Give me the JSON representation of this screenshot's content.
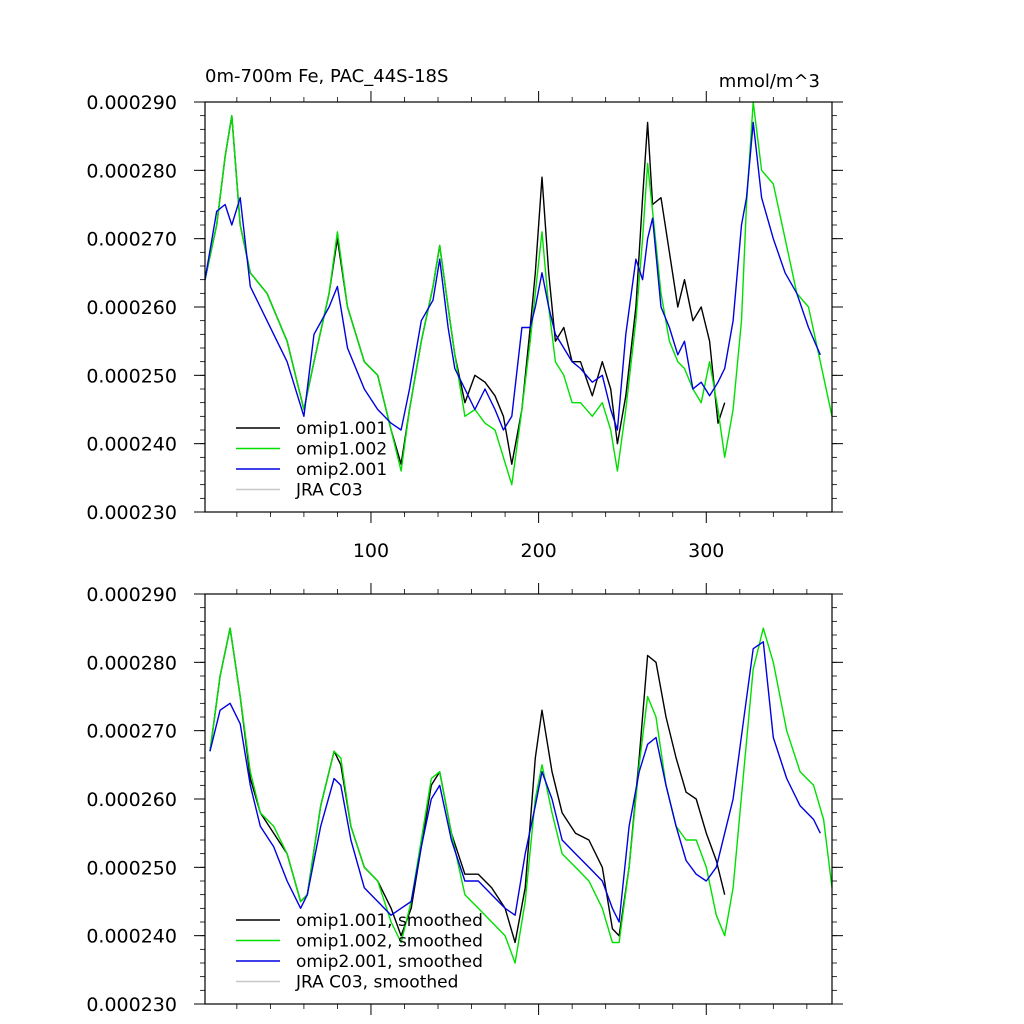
{
  "chart_data": [
    {
      "type": "line",
      "title": "0m-700m Fe, PAC_44S-18S",
      "units": "mmol/m^3",
      "xlim": [
        1,
        375
      ],
      "ylim": [
        0.00023,
        0.00029
      ],
      "x_ticks": [
        100,
        200,
        300
      ],
      "x_tick_labels": [
        "100",
        "200",
        "300"
      ],
      "y_ticks": [
        0.00023,
        0.00024,
        0.00025,
        0.00026,
        0.00027,
        0.00028,
        0.00029
      ],
      "y_tick_labels": [
        "0.000230",
        "0.000240",
        "0.000250",
        "0.000260",
        "0.000270",
        "0.000280",
        "0.000290"
      ],
      "legend": [
        "omip1.001",
        "omip1.002",
        "omip2.001",
        "JRA C03"
      ],
      "series": [
        {
          "name": "omip1.001",
          "color": "#000000",
          "x": [
            1,
            8,
            13,
            17,
            22,
            28,
            38,
            50,
            60,
            66,
            75,
            80,
            86,
            96,
            104,
            112,
            118,
            123,
            130,
            137,
            141,
            146,
            150,
            156,
            162,
            168,
            174,
            179,
            184,
            190,
            195,
            198,
            202,
            206,
            210,
            215,
            220,
            225,
            232,
            238,
            243,
            247,
            252,
            258,
            262,
            265,
            268,
            273,
            278,
            283,
            287,
            292,
            297,
            302,
            307,
            311
          ],
          "values": [
            0.000264,
            0.000272,
            0.000282,
            0.000288,
            0.000272,
            0.000265,
            0.000262,
            0.000255,
            0.000245,
            0.000252,
            0.000262,
            0.00027,
            0.00026,
            0.000252,
            0.00025,
            0.000242,
            0.000237,
            0.000245,
            0.000255,
            0.000263,
            0.000269,
            0.00026,
            0.000253,
            0.000246,
            0.00025,
            0.000249,
            0.000247,
            0.000244,
            0.000237,
            0.000245,
            0.000257,
            0.000265,
            0.000279,
            0.000265,
            0.000255,
            0.000257,
            0.000252,
            0.000252,
            0.000247,
            0.000252,
            0.000248,
            0.00024,
            0.000247,
            0.00026,
            0.000276,
            0.000287,
            0.000275,
            0.000276,
            0.000268,
            0.00026,
            0.000264,
            0.000258,
            0.00026,
            0.000255,
            0.000243,
            0.000246
          ]
        },
        {
          "name": "omip1.002",
          "color": "#00e000",
          "x": [
            1,
            8,
            13,
            17,
            22,
            28,
            38,
            50,
            60,
            66,
            75,
            80,
            86,
            96,
            104,
            112,
            118,
            123,
            130,
            137,
            141,
            146,
            150,
            156,
            162,
            168,
            174,
            179,
            184,
            190,
            195,
            198,
            202,
            206,
            210,
            215,
            220,
            225,
            232,
            238,
            243,
            247,
            252,
            258,
            262,
            265,
            268,
            273,
            278,
            283,
            287,
            292,
            297,
            302,
            307,
            311,
            316,
            321,
            324,
            328,
            333,
            340,
            347,
            354,
            361,
            368,
            375
          ],
          "values": [
            0.000264,
            0.000272,
            0.000282,
            0.000288,
            0.000272,
            0.000265,
            0.000262,
            0.000255,
            0.000245,
            0.000252,
            0.000262,
            0.000271,
            0.00026,
            0.000252,
            0.00025,
            0.000242,
            0.000236,
            0.000245,
            0.000255,
            0.000263,
            0.000269,
            0.00026,
            0.000253,
            0.000244,
            0.000245,
            0.000243,
            0.000242,
            0.000238,
            0.000234,
            0.000245,
            0.000255,
            0.000262,
            0.000271,
            0.00026,
            0.000252,
            0.00025,
            0.000246,
            0.000246,
            0.000244,
            0.000246,
            0.000242,
            0.000236,
            0.000245,
            0.000258,
            0.00027,
            0.000281,
            0.000274,
            0.000262,
            0.000255,
            0.000252,
            0.000251,
            0.000248,
            0.000246,
            0.000252,
            0.000245,
            0.000238,
            0.000245,
            0.000258,
            0.000275,
            0.00029,
            0.00028,
            0.000278,
            0.00027,
            0.000262,
            0.00026,
            0.000252,
            0.000244
          ]
        },
        {
          "name": "omip2.001",
          "color": "#0000e0",
          "x": [
            1,
            8,
            13,
            17,
            22,
            28,
            38,
            50,
            60,
            66,
            75,
            80,
            86,
            96,
            104,
            112,
            118,
            123,
            130,
            137,
            141,
            146,
            150,
            156,
            162,
            168,
            174,
            179,
            184,
            190,
            195,
            198,
            202,
            206,
            210,
            215,
            220,
            225,
            232,
            238,
            243,
            247,
            252,
            258,
            262,
            265,
            268,
            273,
            278,
            283,
            287,
            292,
            297,
            302,
            307,
            311,
            316,
            321,
            324,
            328,
            333,
            340,
            347,
            354,
            361,
            368
          ],
          "values": [
            0.000264,
            0.000274,
            0.000275,
            0.000272,
            0.000276,
            0.000263,
            0.000258,
            0.000252,
            0.000244,
            0.000256,
            0.00026,
            0.000263,
            0.000254,
            0.000248,
            0.000245,
            0.000243,
            0.000242,
            0.000248,
            0.000258,
            0.000261,
            0.000267,
            0.000257,
            0.000251,
            0.000248,
            0.000245,
            0.000248,
            0.000245,
            0.000242,
            0.000244,
            0.000257,
            0.000257,
            0.00026,
            0.000265,
            0.00026,
            0.000256,
            0.000254,
            0.000252,
            0.000251,
            0.000249,
            0.00025,
            0.000245,
            0.000242,
            0.000256,
            0.000267,
            0.000264,
            0.00027,
            0.000273,
            0.00026,
            0.000257,
            0.000253,
            0.000255,
            0.000248,
            0.000249,
            0.000247,
            0.000249,
            0.000251,
            0.000258,
            0.000272,
            0.000276,
            0.000287,
            0.000276,
            0.00027,
            0.000265,
            0.000262,
            0.000257,
            0.000253
          ]
        },
        {
          "name": "JRA C03",
          "color": "#c8c8c8",
          "x": [],
          "values": []
        }
      ]
    },
    {
      "type": "line",
      "title": "",
      "xlim": [
        1,
        375
      ],
      "ylim": [
        0.00023,
        0.00029
      ],
      "x_ticks": [
        100,
        200,
        300
      ],
      "y_ticks": [
        0.00023,
        0.00024,
        0.00025,
        0.00026,
        0.00027,
        0.00028,
        0.00029
      ],
      "y_tick_labels": [
        "0.000230",
        "0.000240",
        "0.000250",
        "0.000260",
        "0.000270",
        "0.000280",
        "0.000290"
      ],
      "legend": [
        "omip1.001, smoothed",
        "omip1.002, smoothed",
        "omip2.001, smoothed",
        "JRA C03, smoothed"
      ],
      "series": [
        {
          "name": "omip1.001, smoothed",
          "color": "#000000",
          "x": [
            4,
            10,
            16,
            22,
            28,
            34,
            42,
            50,
            58,
            62,
            70,
            78,
            82,
            88,
            96,
            104,
            112,
            118,
            124,
            130,
            136,
            141,
            148,
            156,
            164,
            172,
            180,
            186,
            192,
            198,
            202,
            208,
            214,
            222,
            230,
            238,
            244,
            248,
            254,
            260,
            265,
            270,
            276,
            282,
            288,
            294,
            300,
            306,
            311
          ],
          "values": [
            0.000267,
            0.000278,
            0.000285,
            0.000275,
            0.000263,
            0.000258,
            0.000255,
            0.000252,
            0.000245,
            0.000246,
            0.000259,
            0.000267,
            0.000265,
            0.000256,
            0.00025,
            0.000248,
            0.000244,
            0.00024,
            0.000244,
            0.000253,
            0.000262,
            0.000264,
            0.000255,
            0.000249,
            0.000249,
            0.000247,
            0.000244,
            0.000239,
            0.000247,
            0.000266,
            0.000273,
            0.000264,
            0.000258,
            0.000255,
            0.000254,
            0.00025,
            0.000241,
            0.00024,
            0.00025,
            0.000266,
            0.000281,
            0.00028,
            0.000272,
            0.000266,
            0.000261,
            0.00026,
            0.000255,
            0.000251,
            0.000246
          ]
        },
        {
          "name": "omip1.002, smoothed",
          "color": "#00e000",
          "x": [
            4,
            10,
            16,
            22,
            28,
            34,
            42,
            50,
            58,
            62,
            70,
            78,
            82,
            88,
            96,
            104,
            112,
            118,
            124,
            130,
            136,
            141,
            148,
            156,
            164,
            172,
            180,
            186,
            192,
            198,
            202,
            208,
            214,
            222,
            230,
            238,
            244,
            248,
            254,
            260,
            265,
            270,
            276,
            282,
            288,
            294,
            300,
            306,
            311,
            316,
            322,
            328,
            334,
            340,
            348,
            356,
            364,
            370,
            375
          ],
          "values": [
            0.000267,
            0.000278,
            0.000285,
            0.000275,
            0.000264,
            0.000258,
            0.000256,
            0.000252,
            0.000245,
            0.000246,
            0.000259,
            0.000267,
            0.000266,
            0.000256,
            0.00025,
            0.000248,
            0.000242,
            0.000239,
            0.000245,
            0.000254,
            0.000263,
            0.000264,
            0.000255,
            0.000246,
            0.000244,
            0.000242,
            0.00024,
            0.000236,
            0.000245,
            0.00026,
            0.000265,
            0.000258,
            0.000252,
            0.00025,
            0.000248,
            0.000244,
            0.000239,
            0.000239,
            0.00025,
            0.000265,
            0.000275,
            0.000272,
            0.000262,
            0.000256,
            0.000254,
            0.000254,
            0.00025,
            0.000243,
            0.00024,
            0.000247,
            0.000263,
            0.000279,
            0.000285,
            0.00028,
            0.00027,
            0.000264,
            0.000262,
            0.000257,
            0.000247
          ]
        },
        {
          "name": "omip2.001, smoothed",
          "color": "#0000e0",
          "x": [
            4,
            10,
            16,
            22,
            28,
            34,
            42,
            50,
            58,
            62,
            70,
            78,
            82,
            88,
            96,
            104,
            112,
            118,
            124,
            130,
            136,
            141,
            148,
            156,
            164,
            172,
            180,
            186,
            192,
            198,
            202,
            208,
            214,
            222,
            230,
            238,
            244,
            248,
            254,
            260,
            265,
            270,
            276,
            282,
            288,
            294,
            300,
            306,
            311,
            316,
            322,
            328,
            334,
            340,
            348,
            356,
            364,
            368
          ],
          "values": [
            0.000267,
            0.000273,
            0.000274,
            0.000271,
            0.000262,
            0.000256,
            0.000253,
            0.000248,
            0.000244,
            0.000246,
            0.000256,
            0.000263,
            0.000262,
            0.000254,
            0.000247,
            0.000245,
            0.000243,
            0.000244,
            0.000245,
            0.000253,
            0.00026,
            0.000262,
            0.000254,
            0.000248,
            0.000248,
            0.000246,
            0.000244,
            0.000243,
            0.000252,
            0.000259,
            0.000264,
            0.00026,
            0.000254,
            0.000252,
            0.00025,
            0.000248,
            0.000244,
            0.000242,
            0.000256,
            0.000264,
            0.000268,
            0.000269,
            0.000262,
            0.000256,
            0.000251,
            0.000249,
            0.000248,
            0.00025,
            0.000255,
            0.00026,
            0.000271,
            0.000282,
            0.000283,
            0.000269,
            0.000263,
            0.000259,
            0.000257,
            0.000255
          ]
        },
        {
          "name": "JRA C03, smoothed",
          "color": "#c8c8c8",
          "x": [],
          "values": []
        }
      ]
    }
  ]
}
